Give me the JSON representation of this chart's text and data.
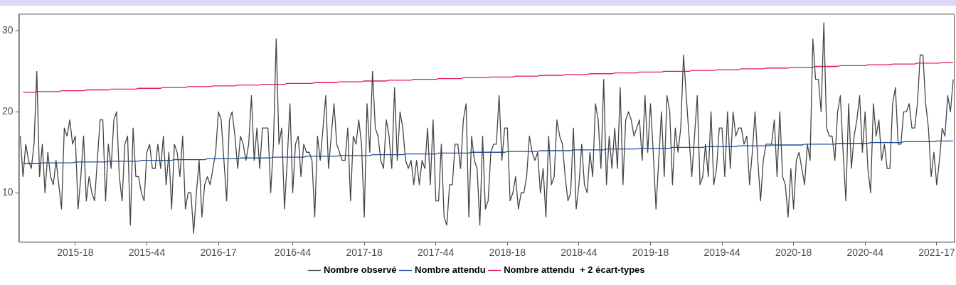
{
  "chart_data": {
    "type": "line",
    "marker": "none",
    "legend": "bottom",
    "grid": false,
    "categories": [
      null,
      null,
      null,
      null,
      null,
      null,
      null,
      null,
      null,
      null,
      null,
      null,
      null,
      null,
      null,
      null,
      null,
      null,
      null,
      null,
      "2015-18",
      null,
      null,
      null,
      null,
      null,
      null,
      null,
      null,
      null,
      null,
      null,
      null,
      null,
      null,
      null,
      null,
      null,
      null,
      null,
      null,
      null,
      null,
      null,
      null,
      null,
      "2015-44",
      null,
      null,
      null,
      null,
      null,
      null,
      null,
      null,
      null,
      null,
      null,
      null,
      null,
      null,
      null,
      null,
      null,
      null,
      null,
      null,
      null,
      null,
      null,
      null,
      null,
      "2016-17",
      null,
      null,
      null,
      null,
      null,
      null,
      null,
      null,
      null,
      null,
      null,
      null,
      null,
      null,
      null,
      null,
      null,
      null,
      null,
      null,
      null,
      null,
      null,
      null,
      null,
      null,
      "2016-44",
      null,
      null,
      null,
      null,
      null,
      null,
      null,
      null,
      null,
      null,
      null,
      null,
      null,
      null,
      null,
      null,
      null,
      null,
      null,
      null,
      null,
      null,
      null,
      null,
      null,
      "2017-18",
      null,
      null,
      null,
      null,
      null,
      null,
      null,
      null,
      null,
      null,
      null,
      null,
      null,
      null,
      null,
      null,
      null,
      null,
      null,
      null,
      null,
      null,
      null,
      null,
      null,
      "2017-44",
      null,
      null,
      null,
      null,
      null,
      null,
      null,
      null,
      null,
      null,
      null,
      null,
      null,
      null,
      null,
      null,
      null,
      null,
      null,
      null,
      null,
      null,
      null,
      null,
      null,
      "2018-18",
      null,
      null,
      null,
      null,
      null,
      null,
      null,
      null,
      null,
      null,
      null,
      null,
      null,
      null,
      null,
      null,
      null,
      null,
      null,
      null,
      null,
      null,
      null,
      null,
      null,
      "2018-44",
      null,
      null,
      null,
      null,
      null,
      null,
      null,
      null,
      null,
      null,
      null,
      null,
      null,
      null,
      null,
      null,
      null,
      null,
      null,
      null,
      null,
      null,
      null,
      null,
      null,
      "2019-18",
      null,
      null,
      null,
      null,
      null,
      null,
      null,
      null,
      null,
      null,
      null,
      null,
      null,
      null,
      null,
      null,
      null,
      null,
      null,
      null,
      null,
      null,
      null,
      null,
      null,
      "2019-44",
      null,
      null,
      null,
      null,
      null,
      null,
      null,
      null,
      null,
      null,
      null,
      null,
      null,
      null,
      null,
      null,
      null,
      null,
      null,
      null,
      null,
      null,
      null,
      null,
      null,
      "2020-18",
      null,
      null,
      null,
      null,
      null,
      null,
      null,
      null,
      null,
      null,
      null,
      null,
      null,
      null,
      null,
      null,
      null,
      null,
      null,
      null,
      null,
      null,
      null,
      null,
      null,
      "2020-44",
      null,
      null,
      null,
      null,
      null,
      null,
      null,
      null,
      null,
      null,
      null,
      null,
      null,
      null,
      null,
      null,
      null,
      null,
      null,
      null,
      null,
      null,
      null,
      null,
      null,
      "2021-17",
      null,
      null,
      null,
      null,
      null,
      null
    ],
    "ylim": [
      3.95,
      32.1
    ],
    "yticks": [
      10,
      20,
      30
    ],
    "series": [
      {
        "name": "Nombre observé",
        "color": "#454545",
        "values": [
          17,
          12,
          16,
          14,
          13,
          16,
          25,
          12,
          16,
          10,
          15,
          12,
          11,
          14,
          11,
          8,
          18,
          17,
          19,
          16,
          17,
          8,
          12,
          17,
          9,
          12,
          10,
          9,
          14,
          19,
          19,
          9,
          16,
          13,
          19,
          20,
          12,
          9,
          16,
          17,
          6,
          18,
          12,
          12,
          10,
          9,
          15,
          16,
          13,
          13,
          16,
          13,
          17,
          11,
          15,
          8,
          16,
          15,
          12,
          17,
          8,
          10,
          10,
          5,
          10,
          14,
          7,
          11,
          12,
          11,
          13,
          15,
          20,
          19,
          14,
          9,
          19,
          20,
          17,
          13,
          17,
          16,
          14,
          16,
          22,
          14,
          18,
          13,
          18,
          18,
          18,
          10,
          16,
          29,
          16,
          18,
          8,
          14,
          21,
          10,
          16,
          17,
          12,
          16,
          15,
          15,
          14,
          7,
          17,
          14,
          18,
          22,
          13,
          17,
          21,
          16,
          15,
          14,
          14,
          18,
          9,
          17,
          16,
          19,
          16,
          7,
          21,
          15,
          25,
          18,
          17,
          14,
          13,
          19,
          17,
          13,
          23,
          14,
          20,
          18,
          14,
          13,
          14,
          11,
          14,
          11,
          14,
          13,
          18,
          11,
          19,
          9,
          9,
          16,
          7,
          6,
          11,
          11,
          16,
          16,
          13,
          19,
          21,
          7,
          17,
          14,
          13,
          6,
          17,
          8,
          9,
          15,
          16,
          16,
          22,
          14,
          18,
          18,
          9,
          10,
          12,
          8,
          10,
          10,
          12,
          17,
          15,
          14,
          15,
          10,
          13,
          7,
          17,
          11,
          12,
          19,
          17,
          16,
          12,
          9,
          10,
          18,
          8,
          11,
          16,
          11,
          10,
          15,
          12,
          21,
          19,
          13,
          24,
          11,
          17,
          13,
          18,
          13,
          23,
          11,
          19,
          20,
          19,
          17,
          18,
          19,
          14,
          22,
          15,
          21,
          15,
          8,
          14,
          20,
          12,
          22,
          20,
          11,
          18,
          15,
          18,
          27,
          22,
          17,
          12,
          17,
          22,
          11,
          12,
          16,
          12,
          20,
          11,
          13,
          18,
          18,
          12,
          20,
          13,
          20,
          17,
          18,
          18,
          16,
          17,
          11,
          15,
          20,
          14,
          9,
          14,
          16,
          16,
          16,
          19,
          12,
          20,
          12,
          11,
          7,
          13,
          8,
          14,
          15,
          13,
          11,
          16,
          14,
          29,
          24,
          24,
          20,
          31,
          18,
          17,
          17,
          14,
          20,
          22,
          15,
          9,
          21,
          13,
          17,
          19,
          22,
          15,
          20,
          13,
          10,
          21,
          17,
          19,
          14,
          16,
          13,
          13,
          21,
          23,
          16,
          16,
          20,
          20,
          21,
          18,
          18,
          21,
          27,
          27,
          21,
          18,
          12,
          15,
          11,
          14,
          18,
          17,
          22,
          20,
          24
        ]
      },
      {
        "name": "Nombre attendu",
        "color": "#1c4f9c",
        "values": [
          null,
          13.6,
          13.6,
          13.6,
          13.6,
          13.6,
          13.6,
          13.6,
          13.7,
          13.7,
          13.7,
          13.7,
          13.7,
          13.7,
          13.7,
          13.7,
          13.7,
          13.7,
          13.7,
          13.7,
          13.8,
          13.8,
          13.8,
          13.8,
          13.8,
          13.8,
          13.8,
          13.8,
          13.8,
          13.8,
          13.8,
          13.8,
          13.9,
          13.9,
          13.9,
          13.9,
          13.9,
          13.9,
          13.9,
          13.9,
          13.9,
          13.9,
          13.9,
          13.9,
          14.0,
          14.0,
          14.0,
          14.0,
          14.0,
          14.0,
          14.0,
          14.0,
          14.0,
          14.0,
          14.0,
          14.0,
          14.1,
          14.1,
          14.1,
          14.1,
          14.1,
          14.1,
          14.1,
          14.1,
          14.1,
          14.1,
          14.1,
          14.1,
          14.2,
          14.2,
          14.2,
          14.2,
          14.2,
          14.2,
          14.2,
          14.2,
          14.2,
          14.2,
          14.2,
          14.2,
          14.3,
          14.3,
          14.3,
          14.3,
          14.3,
          14.3,
          14.3,
          14.3,
          14.3,
          14.3,
          14.3,
          14.3,
          14.4,
          14.4,
          14.4,
          14.4,
          14.4,
          14.4,
          14.4,
          14.4,
          14.4,
          14.4,
          14.4,
          14.4,
          14.5,
          14.5,
          14.5,
          14.5,
          14.5,
          14.5,
          14.5,
          14.5,
          14.5,
          14.5,
          14.5,
          14.5,
          14.6,
          14.6,
          14.6,
          14.6,
          14.6,
          14.6,
          14.6,
          14.6,
          14.6,
          14.6,
          14.6,
          14.6,
          14.7,
          14.7,
          14.7,
          14.7,
          14.7,
          14.7,
          14.7,
          14.7,
          14.7,
          14.7,
          14.7,
          14.7,
          14.8,
          14.8,
          14.8,
          14.8,
          14.8,
          14.8,
          14.8,
          14.8,
          14.8,
          14.8,
          14.8,
          14.8,
          14.9,
          14.9,
          14.9,
          14.9,
          14.9,
          14.9,
          14.9,
          14.9,
          14.9,
          14.9,
          14.9,
          14.9,
          15.0,
          15.0,
          15.0,
          15.0,
          15.0,
          15.0,
          15.0,
          15.0,
          15.0,
          15.0,
          15.0,
          15.0,
          15.0,
          15.1,
          15.1,
          15.1,
          15.1,
          15.1,
          15.1,
          15.1,
          15.1,
          15.1,
          15.1,
          15.1,
          15.1,
          15.2,
          15.2,
          15.2,
          15.2,
          15.2,
          15.2,
          15.2,
          15.2,
          15.2,
          15.2,
          15.2,
          15.2,
          15.3,
          15.3,
          15.3,
          15.3,
          15.3,
          15.3,
          15.3,
          15.3,
          15.3,
          15.3,
          15.3,
          15.3,
          15.4,
          15.4,
          15.4,
          15.4,
          15.4,
          15.4,
          15.4,
          15.4,
          15.4,
          15.4,
          15.4,
          15.4,
          15.5,
          15.5,
          15.5,
          15.5,
          15.5,
          15.5,
          15.5,
          15.5,
          15.5,
          15.5,
          15.5,
          15.5,
          15.6,
          15.6,
          15.6,
          15.6,
          15.6,
          15.6,
          15.6,
          15.6,
          15.6,
          15.6,
          15.6,
          15.6,
          15.7,
          15.7,
          15.7,
          15.7,
          15.7,
          15.7,
          15.7,
          15.7,
          15.7,
          15.7,
          15.7,
          15.7,
          15.8,
          15.8,
          15.8,
          15.8,
          15.8,
          15.8,
          15.8,
          15.8,
          15.8,
          15.8,
          15.8,
          15.8,
          15.9,
          15.9,
          15.9,
          15.9,
          15.9,
          15.9,
          15.9,
          15.9,
          15.9,
          15.9,
          15.9,
          15.9,
          16.0,
          16.0,
          16.0,
          16.0,
          16.0,
          16.0,
          16.0,
          16.0,
          16.0,
          16.0,
          16.0,
          16.0,
          16.1,
          16.1,
          16.1,
          16.1,
          16.1,
          16.1,
          16.1,
          16.1,
          16.1,
          16.1,
          16.1,
          16.1,
          16.2,
          16.2,
          16.2,
          16.2,
          16.2,
          16.2,
          16.2,
          16.2,
          16.2,
          16.2,
          16.2,
          16.2,
          16.3,
          16.3,
          16.3,
          16.3,
          16.3,
          16.3,
          16.3,
          16.3,
          16.3,
          16.3,
          16.3,
          16.3,
          16.4,
          16.4,
          16.4,
          16.4,
          16.4,
          16.4,
          16.4
        ]
      },
      {
        "name": "Nombre attendu  + 2 écart-types",
        "color": "#e6195a",
        "values": [
          null,
          22.4,
          22.4,
          22.4,
          22.4,
          22.4,
          22.5,
          22.5,
          22.5,
          22.5,
          22.5,
          22.5,
          22.5,
          22.5,
          22.5,
          22.6,
          22.6,
          22.6,
          22.6,
          22.6,
          22.6,
          22.6,
          22.6,
          22.6,
          22.7,
          22.7,
          22.7,
          22.7,
          22.7,
          22.7,
          22.7,
          22.7,
          22.7,
          22.8,
          22.8,
          22.8,
          22.8,
          22.8,
          22.8,
          22.8,
          22.8,
          22.8,
          22.8,
          22.9,
          22.9,
          22.9,
          22.9,
          22.9,
          22.9,
          22.9,
          22.9,
          22.9,
          23.0,
          23.0,
          23.0,
          23.0,
          23.0,
          23.0,
          23.0,
          23.0,
          23.0,
          23.1,
          23.1,
          23.1,
          23.1,
          23.1,
          23.1,
          23.1,
          23.1,
          23.1,
          23.2,
          23.2,
          23.2,
          23.2,
          23.2,
          23.2,
          23.2,
          23.2,
          23.2,
          23.3,
          23.3,
          23.3,
          23.3,
          23.3,
          23.3,
          23.3,
          23.3,
          23.3,
          23.4,
          23.4,
          23.4,
          23.4,
          23.4,
          23.4,
          23.4,
          23.4,
          23.4,
          23.5,
          23.5,
          23.5,
          23.5,
          23.5,
          23.5,
          23.5,
          23.5,
          23.5,
          23.5,
          23.6,
          23.6,
          23.6,
          23.6,
          23.6,
          23.6,
          23.6,
          23.6,
          23.6,
          23.7,
          23.7,
          23.7,
          23.7,
          23.7,
          23.7,
          23.7,
          23.7,
          23.7,
          23.8,
          23.8,
          23.8,
          23.8,
          23.8,
          23.8,
          23.8,
          23.8,
          23.8,
          23.9,
          23.9,
          23.9,
          23.9,
          23.9,
          23.9,
          23.9,
          23.9,
          23.9,
          24.0,
          24.0,
          24.0,
          24.0,
          24.0,
          24.0,
          24.0,
          24.0,
          24.0,
          24.1,
          24.1,
          24.1,
          24.1,
          24.1,
          24.1,
          24.1,
          24.1,
          24.1,
          24.2,
          24.2,
          24.2,
          24.2,
          24.2,
          24.2,
          24.2,
          24.2,
          24.2,
          24.2,
          24.3,
          24.3,
          24.3,
          24.3,
          24.3,
          24.3,
          24.3,
          24.3,
          24.3,
          24.4,
          24.4,
          24.4,
          24.4,
          24.4,
          24.4,
          24.4,
          24.4,
          24.4,
          24.5,
          24.5,
          24.5,
          24.5,
          24.5,
          24.5,
          24.5,
          24.5,
          24.5,
          24.6,
          24.6,
          24.6,
          24.6,
          24.6,
          24.6,
          24.6,
          24.6,
          24.6,
          24.7,
          24.7,
          24.7,
          24.7,
          24.7,
          24.7,
          24.7,
          24.7,
          24.7,
          24.8,
          24.8,
          24.8,
          24.8,
          24.8,
          24.8,
          24.8,
          24.8,
          24.8,
          24.9,
          24.9,
          24.9,
          24.9,
          24.9,
          24.9,
          24.9,
          24.9,
          24.9,
          25.0,
          25.0,
          25.0,
          25.0,
          25.0,
          25.0,
          25.0,
          25.0,
          25.0,
          25.0,
          25.1,
          25.1,
          25.1,
          25.1,
          25.1,
          25.1,
          25.1,
          25.1,
          25.1,
          25.2,
          25.2,
          25.2,
          25.2,
          25.2,
          25.2,
          25.2,
          25.2,
          25.2,
          25.3,
          25.3,
          25.3,
          25.3,
          25.3,
          25.3,
          25.3,
          25.3,
          25.3,
          25.4,
          25.4,
          25.4,
          25.4,
          25.4,
          25.4,
          25.4,
          25.4,
          25.4,
          25.5,
          25.5,
          25.5,
          25.5,
          25.5,
          25.5,
          25.5,
          25.5,
          25.5,
          25.6,
          25.6,
          25.6,
          25.6,
          25.6,
          25.6,
          25.6,
          25.6,
          25.6,
          25.7,
          25.7,
          25.7,
          25.7,
          25.7,
          25.7,
          25.7,
          25.7,
          25.7,
          25.7,
          25.8,
          25.8,
          25.8,
          25.8,
          25.8,
          25.8,
          25.8,
          25.8,
          25.8,
          25.9,
          25.9,
          25.9,
          25.9,
          25.9,
          25.9,
          25.9,
          25.9,
          25.9,
          26.0,
          26.0,
          26.0,
          26.0,
          26.0,
          26.0,
          26.0,
          26.0,
          26.0,
          26.1,
          26.1,
          26.1,
          26.1,
          26.1
        ]
      }
    ]
  }
}
